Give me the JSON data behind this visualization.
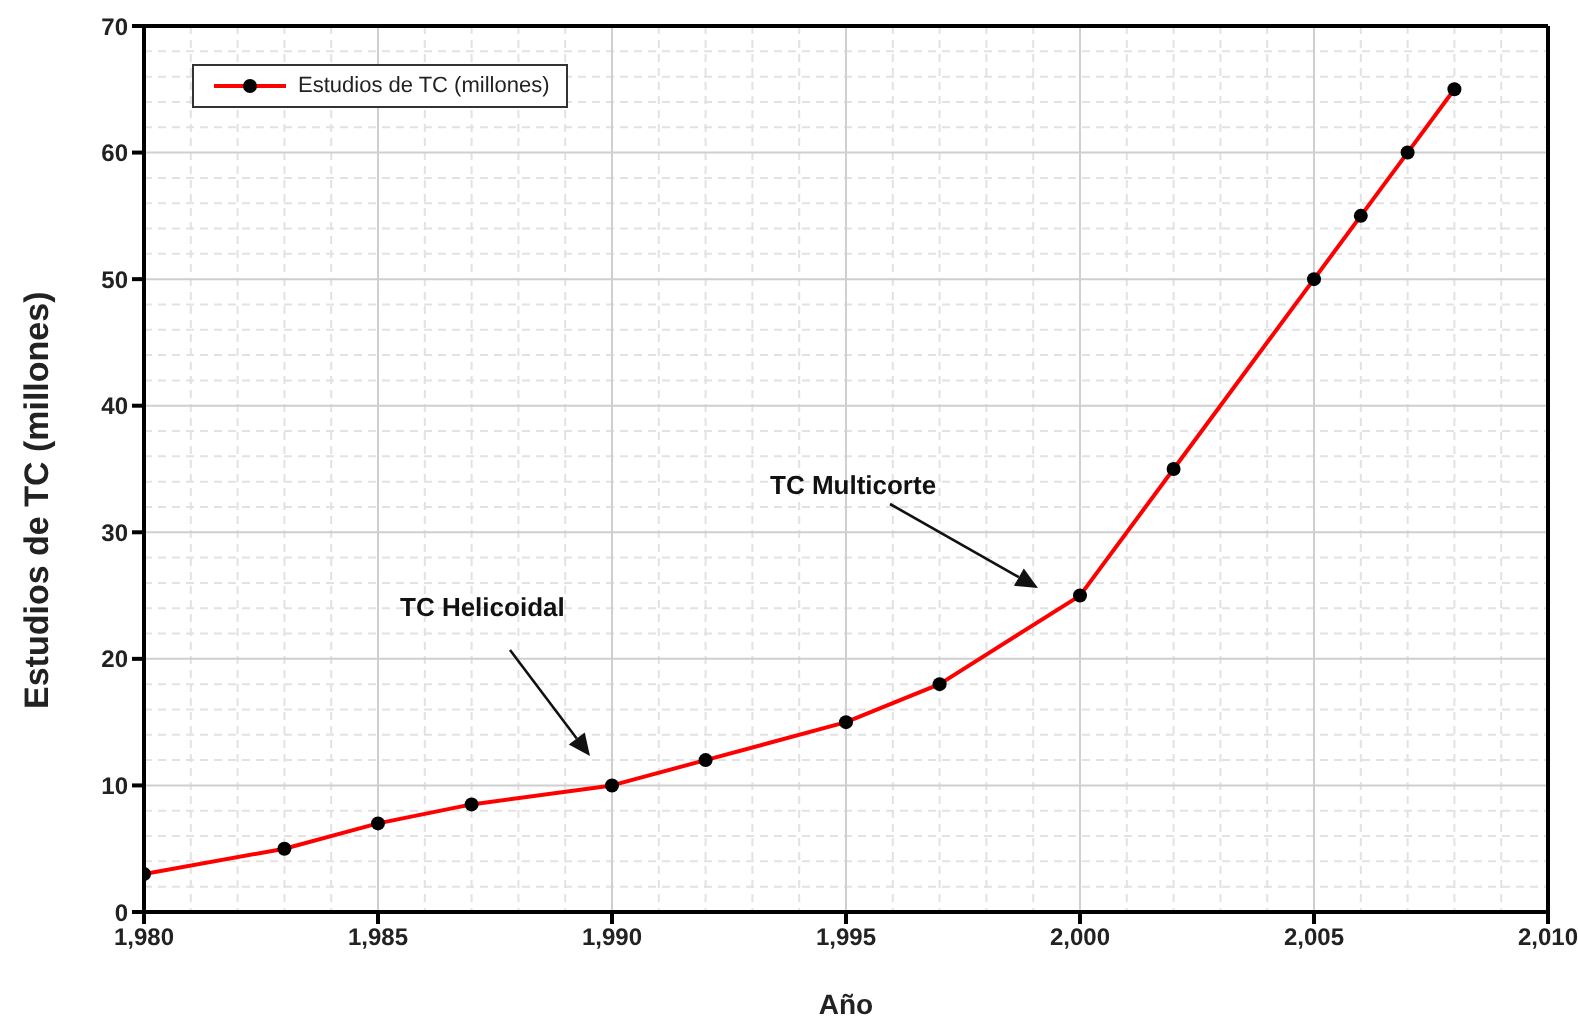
{
  "chart_data": {
    "type": "line",
    "xlabel": "Año",
    "ylabel": "Estudios de TC (millones)",
    "x": [
      1980,
      1983,
      1985,
      1987,
      1990,
      1992,
      1995,
      1997,
      2000,
      2002,
      2005,
      2006,
      2007,
      2008
    ],
    "series": [
      {
        "name": "Estudios de TC (millones)",
        "color": "#ff0000",
        "values": [
          3,
          5,
          7,
          8.5,
          10,
          12,
          15,
          18,
          25,
          35,
          50,
          55,
          60,
          65
        ]
      }
    ],
    "xlim": [
      1980,
      2010
    ],
    "xticks": [
      {
        "value": 1980,
        "label": "1,980"
      },
      {
        "value": 1985,
        "label": "1,985"
      },
      {
        "value": 1990,
        "label": "1,990"
      },
      {
        "value": 1995,
        "label": "1,995"
      },
      {
        "value": 2000,
        "label": "2,000"
      },
      {
        "value": 2005,
        "label": "2,005"
      },
      {
        "value": 2010,
        "label": "2,010"
      }
    ],
    "ylim": [
      0,
      70
    ],
    "yticks": [
      0,
      10,
      20,
      30,
      40,
      50,
      60,
      70
    ],
    "annotations": [
      "TC Helicoidal",
      "TC Multicorte"
    ],
    "grid": true,
    "legend": "top left",
    "marker": "circle",
    "line_style": "solid"
  }
}
